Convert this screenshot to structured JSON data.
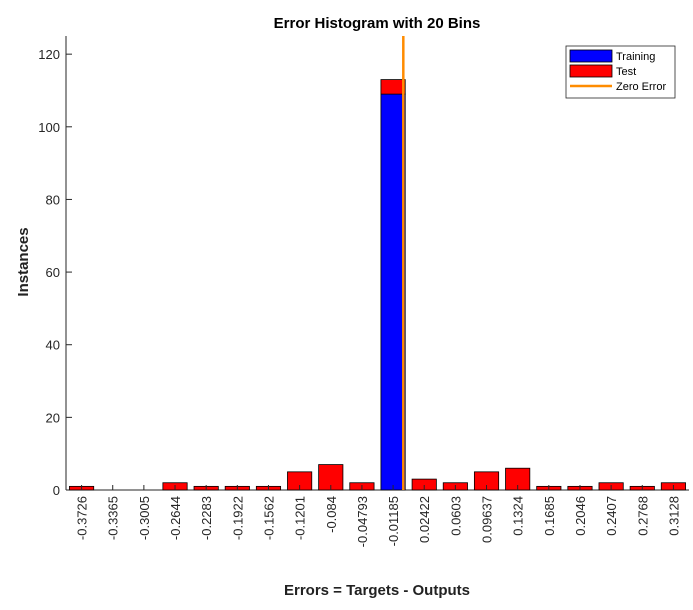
{
  "chart_data": {
    "type": "bar",
    "title": "Error Histogram with 20 Bins",
    "xlabel": "Errors = Targets - Outputs",
    "ylabel": "Instances",
    "ylim": [
      0,
      125
    ],
    "yticks": [
      0,
      20,
      40,
      60,
      80,
      100,
      120
    ],
    "categories": [
      "-0.3726",
      "-0.3365",
      "-0.3005",
      "-0.2644",
      "-0.2283",
      "-0.1922",
      "-0.1562",
      "-0.1201",
      "-0.084",
      "-0.04793",
      "-0.01185",
      "0.02422",
      "0.0603",
      "0.09637",
      "0.1324",
      "0.1685",
      "0.2046",
      "0.2407",
      "0.2768",
      "0.3128"
    ],
    "series": [
      {
        "name": "Training",
        "color": "#0000ff",
        "values": [
          0,
          0,
          0,
          0,
          0,
          0,
          0,
          0,
          0,
          0,
          109,
          0,
          0,
          0,
          0,
          0,
          0,
          0,
          0,
          0
        ]
      },
      {
        "name": "Test",
        "color": "#ff0000",
        "values": [
          1,
          0,
          0,
          2,
          1,
          1,
          1,
          5,
          7,
          2,
          4,
          3,
          2,
          5,
          6,
          1,
          1,
          2,
          1,
          2
        ]
      }
    ],
    "stacked": true,
    "zero_error": {
      "name": "Zero Error",
      "color": "#ff8c00",
      "x": 0
    },
    "legend_position": "top-right",
    "grid": false
  }
}
